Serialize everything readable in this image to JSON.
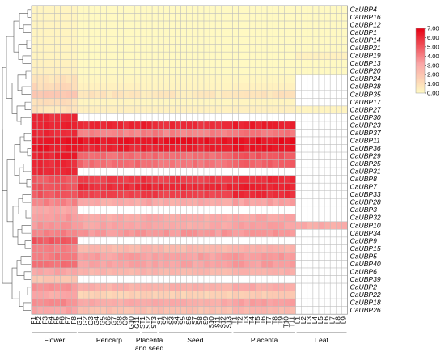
{
  "chart_data": {
    "type": "heatmap",
    "title": "",
    "xlabel": "",
    "ylabel": "",
    "rows": [
      "CaUBP4",
      "CaUBP16",
      "CaUBP12",
      "CaUBP1",
      "CaUBP14",
      "CaUBP21",
      "CaUBP19",
      "CaUBP13",
      "CaUBP20",
      "CaUBP24",
      "CaUBP38",
      "CaUBP35",
      "CaUBP17",
      "CaUBP27",
      "CaUBP30",
      "CaUBP23",
      "CaUBP37",
      "CaUBP11",
      "CaUBP36",
      "CaUBP29",
      "CaUBP25",
      "CaUBP31",
      "CaUBP8",
      "CaUBP7",
      "CaUBP33",
      "CaUBP28",
      "CaUBP3",
      "CaUBP32",
      "CaUBP10",
      "CaUBP34",
      "CaUBP9",
      "CaUBP15",
      "CaUBP5",
      "CaUBP40",
      "CaUBP6",
      "CaUBP39",
      "CaUBP2",
      "CaUBP22",
      "CaUBP18",
      "CaUBP26"
    ],
    "columns": [
      "F1",
      "F2",
      "F3",
      "F4",
      "F5",
      "F6",
      "F7",
      "F8",
      "G1",
      "G2",
      "G3",
      "G4",
      "G5",
      "G6",
      "G7",
      "G8",
      "G9",
      "G10",
      "G11",
      "ST1",
      "ST2",
      "ST3",
      "S1",
      "S2",
      "S3",
      "S4",
      "S5",
      "S6",
      "S7",
      "S8",
      "S9",
      "S10",
      "S11",
      "S12",
      "S13",
      "T1",
      "T2",
      "T3",
      "T4",
      "T5",
      "T6",
      "T7",
      "T8",
      "T9",
      "T10",
      "T11",
      "L1",
      "L2",
      "L3",
      "L4",
      "L5",
      "L6",
      "L7",
      "L8",
      "L9"
    ],
    "groups": [
      {
        "name": "Flower",
        "from": 0,
        "to": 7
      },
      {
        "name": "Pericarp",
        "from": 8,
        "to": 18
      },
      {
        "name": "Placenta and seed",
        "from": 19,
        "to": 21
      },
      {
        "name": "Seed",
        "from": 22,
        "to": 34
      },
      {
        "name": "Placenta",
        "from": 35,
        "to": 45
      },
      {
        "name": "Leaf",
        "from": 46,
        "to": 54
      }
    ],
    "group_values": {
      "CaUBP4": [
        0.2,
        0.0,
        0.0,
        0.0,
        0.0,
        0.0
      ],
      "CaUBP16": [
        0.2,
        0.0,
        0.0,
        0.0,
        0.0,
        0.0
      ],
      "CaUBP12": [
        0.2,
        0.0,
        0.0,
        0.0,
        0.0,
        0.0
      ],
      "CaUBP1": [
        0.2,
        0.0,
        0.0,
        0.0,
        0.0,
        0.0
      ],
      "CaUBP14": [
        0.2,
        0.0,
        0.0,
        0.0,
        0.0,
        0.0
      ],
      "CaUBP21": [
        0.2,
        0.0,
        0.0,
        0.0,
        0.0,
        0.0
      ],
      "CaUBP19": [
        0.2,
        0.0,
        0.0,
        0.0,
        0.0,
        0.3
      ],
      "CaUBP13": [
        0.3,
        0.0,
        0.0,
        0.0,
        0.0,
        0.0
      ],
      "CaUBP20": [
        0.4,
        0.0,
        0.0,
        0.0,
        0.0,
        0.0
      ],
      "CaUBP24": [
        0.8,
        0.1,
        0.1,
        0.1,
        0.1,
        null
      ],
      "CaUBP38": [
        1.2,
        0.3,
        0.2,
        0.2,
        0.3,
        null
      ],
      "CaUBP35": [
        1.8,
        0.8,
        0.6,
        0.6,
        0.8,
        null
      ],
      "CaUBP17": [
        1.0,
        0.2,
        0.1,
        0.1,
        0.2,
        null
      ],
      "CaUBP27": [
        0.8,
        0.4,
        0.3,
        0.3,
        0.4,
        0.2
      ],
      "CaUBP30": [
        6.0,
        null,
        null,
        null,
        null,
        null
      ],
      "CaUBP23": [
        6.2,
        6.0,
        6.2,
        6.0,
        6.3,
        null
      ],
      "CaUBP37": [
        6.0,
        4.0,
        4.2,
        4.0,
        4.3,
        null
      ],
      "CaUBP11": [
        6.5,
        6.5,
        6.6,
        6.5,
        6.6,
        null
      ],
      "CaUBP36": [
        6.4,
        6.2,
        6.3,
        6.2,
        6.4,
        null
      ],
      "CaUBP29": [
        6.2,
        4.5,
        4.6,
        4.5,
        5.0,
        null
      ],
      "CaUBP25": [
        6.0,
        4.5,
        4.4,
        4.3,
        4.8,
        null
      ],
      "CaUBP31": [
        6.0,
        null,
        null,
        null,
        null,
        null
      ],
      "CaUBP8": [
        5.0,
        5.6,
        5.8,
        5.6,
        6.0,
        null
      ],
      "CaUBP7": [
        5.2,
        6.0,
        6.1,
        6.0,
        6.2,
        null
      ],
      "CaUBP33": [
        5.0,
        5.5,
        5.7,
        5.5,
        6.0,
        null
      ],
      "CaUBP28": [
        4.0,
        3.0,
        3.2,
        3.0,
        3.3,
        null
      ],
      "CaUBP3": [
        3.0,
        null,
        null,
        null,
        null,
        null
      ],
      "CaUBP32": [
        3.5,
        3.0,
        3.1,
        3.0,
        3.2,
        null
      ],
      "CaUBP10": [
        3.5,
        3.2,
        3.1,
        3.0,
        3.2,
        3.0
      ],
      "CaUBP34": [
        4.0,
        3.5,
        3.6,
        3.5,
        3.6,
        null
      ],
      "CaUBP9": [
        5.0,
        null,
        null,
        null,
        null,
        null
      ],
      "CaUBP15": [
        4.0,
        2.5,
        2.6,
        2.5,
        2.8,
        null
      ],
      "CaUBP5": [
        4.2,
        3.3,
        3.4,
        3.3,
        3.5,
        null
      ],
      "CaUBP40": [
        4.5,
        3.2,
        3.3,
        3.2,
        3.4,
        null
      ],
      "CaUBP6": [
        3.2,
        2.6,
        2.7,
        2.6,
        2.9,
        null
      ],
      "CaUBP39": [
        2.0,
        null,
        null,
        null,
        null,
        null
      ],
      "CaUBP2": [
        3.5,
        2.8,
        2.9,
        2.8,
        3.0,
        null
      ],
      "CaUBP22": [
        3.0,
        1.5,
        1.6,
        1.5,
        1.8,
        null
      ],
      "CaUBP18": [
        3.8,
        3.0,
        3.1,
        3.0,
        3.3,
        null
      ],
      "CaUBP26": [
        3.2,
        2.2,
        2.3,
        2.2,
        2.5,
        null
      ]
    },
    "colorscale": {
      "min": 0.0,
      "max": 7.0,
      "ticks": [
        "0.00",
        "1.00",
        "2.00",
        "3.00",
        "4.00",
        "5.00",
        "6.00",
        "7.00"
      ],
      "low_color": "#FFF9C2",
      "mid_color": "#FAA7A7",
      "high_color": "#E60012",
      "missing_color": "#ffffff"
    },
    "legend": "right"
  }
}
